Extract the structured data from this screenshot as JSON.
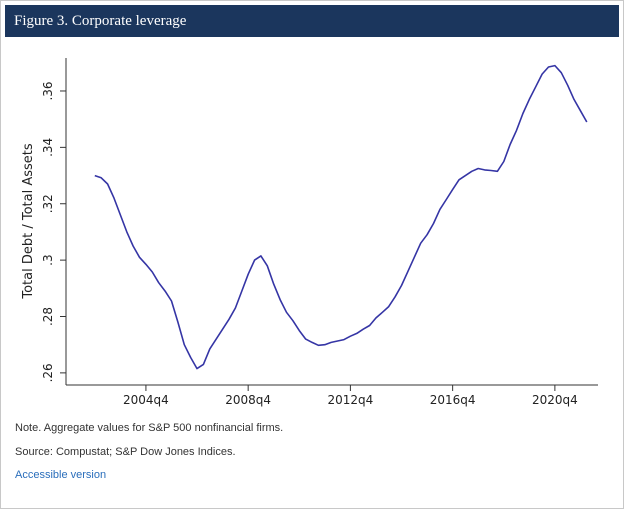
{
  "chart_data": {
    "type": "line",
    "title": "Figure 3. Corporate leverage",
    "ylabel": "Total Debt / Total Assets",
    "x": [
      "2002q4",
      "2003q1",
      "2003q2",
      "2003q3",
      "2003q4",
      "2004q1",
      "2004q2",
      "2004q3",
      "2004q4",
      "2005q1",
      "2005q2",
      "2005q3",
      "2005q4",
      "2006q1",
      "2006q2",
      "2006q3",
      "2006q4",
      "2007q1",
      "2007q2",
      "2007q3",
      "2007q4",
      "2008q1",
      "2008q2",
      "2008q3",
      "2008q4",
      "2009q1",
      "2009q2",
      "2009q3",
      "2009q4",
      "2010q1",
      "2010q2",
      "2010q3",
      "2010q4",
      "2011q1",
      "2011q2",
      "2011q3",
      "2011q4",
      "2012q1",
      "2012q2",
      "2012q3",
      "2012q4",
      "2013q1",
      "2013q2",
      "2013q3",
      "2013q4",
      "2014q1",
      "2014q2",
      "2014q3",
      "2014q4",
      "2015q1",
      "2015q2",
      "2015q3",
      "2015q4",
      "2016q1",
      "2016q2",
      "2016q3",
      "2016q4",
      "2017q1",
      "2017q2",
      "2017q3",
      "2017q4",
      "2018q1",
      "2018q2",
      "2018q3",
      "2018q4",
      "2019q1",
      "2019q2",
      "2019q3",
      "2019q4",
      "2020q1",
      "2020q2",
      "2020q3",
      "2020q4",
      "2021q1",
      "2021q2",
      "2021q3",
      "2021q4",
      "2022q1"
    ],
    "values": [
      0.33,
      0.3292,
      0.327,
      0.322,
      0.316,
      0.31,
      0.305,
      0.301,
      0.2985,
      0.2958,
      0.292,
      0.289,
      0.2855,
      0.278,
      0.27,
      0.2655,
      0.2615,
      0.263,
      0.2685,
      0.272,
      0.2755,
      0.279,
      0.283,
      0.289,
      0.295,
      0.3,
      0.3015,
      0.298,
      0.2915,
      0.286,
      0.2815,
      0.2785,
      0.275,
      0.272,
      0.2708,
      0.2698,
      0.27,
      0.2708,
      0.2713,
      0.2718,
      0.273,
      0.274,
      0.2755,
      0.2768,
      0.2795,
      0.2815,
      0.2835,
      0.287,
      0.291,
      0.296,
      0.301,
      0.306,
      0.309,
      0.313,
      0.318,
      0.3215,
      0.325,
      0.3285,
      0.33,
      0.3315,
      0.3325,
      0.332,
      0.3318,
      0.3315,
      0.335,
      0.341,
      0.346,
      0.352,
      0.357,
      0.3615,
      0.366,
      0.3685,
      0.369,
      0.3665,
      0.362,
      0.357,
      0.353,
      0.349
    ],
    "color": "#3535a5",
    "ylim": [
      0.2557,
      0.3717
    ],
    "yticks": [
      {
        "value": 0.26,
        "label": ".26"
      },
      {
        "value": 0.28,
        "label": ".28"
      },
      {
        "value": 0.3,
        "label": ".3"
      },
      {
        "value": 0.32,
        "label": ".32"
      },
      {
        "value": 0.34,
        "label": ".34"
      },
      {
        "value": 0.36,
        "label": ".36"
      }
    ],
    "xticks": [
      "2004q4",
      "2008q4",
      "2012q4",
      "2016q4",
      "2020q4"
    ],
    "note": "Note. Aggregate values for S&P 500 nonfinancial firms.",
    "source": "Source: Compustat; S&P Dow Jones Indices.",
    "link": "Accessible version"
  }
}
